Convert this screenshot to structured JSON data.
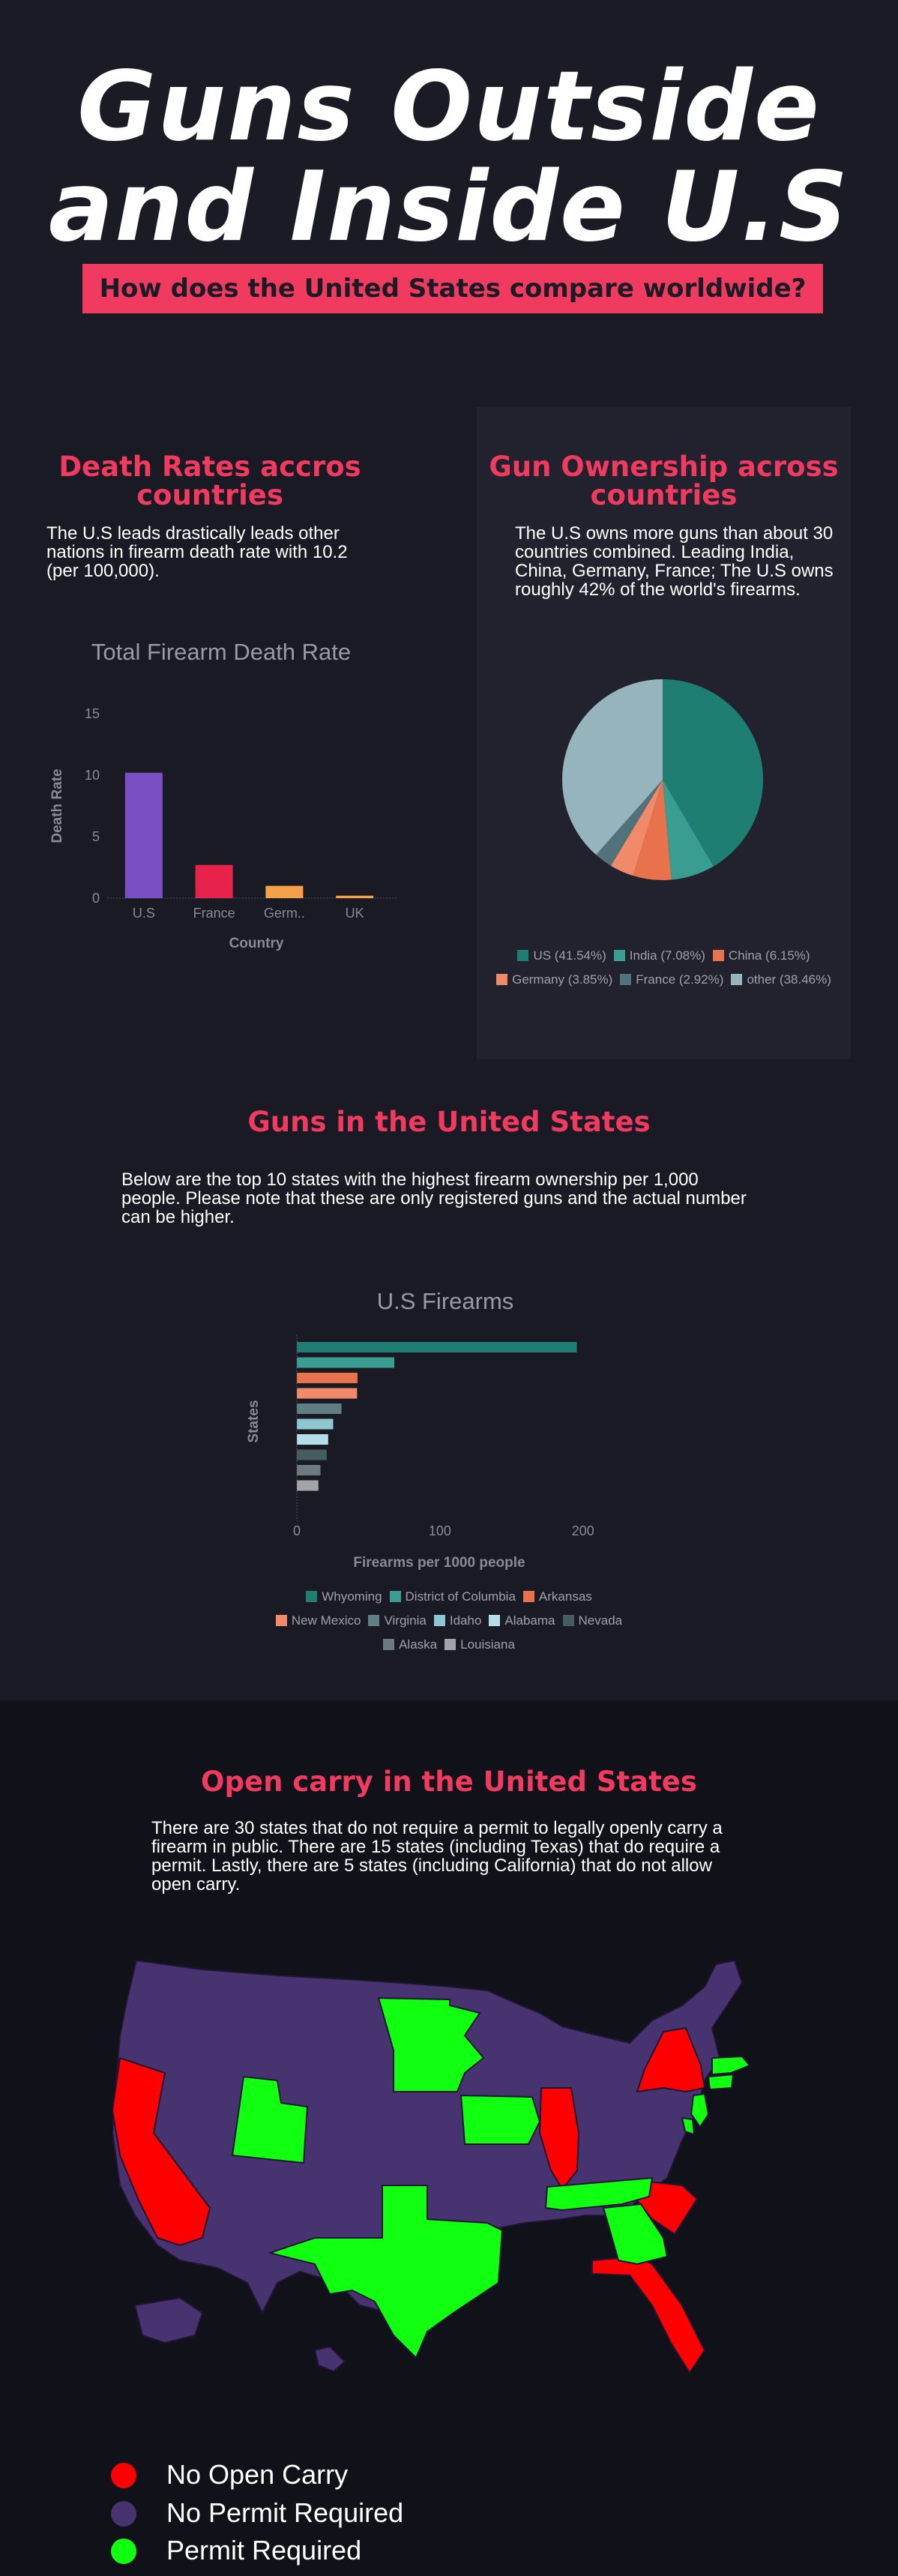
{
  "header": {
    "title_line1": "Guns Outside",
    "title_line2": "and Inside U.S",
    "subtitle": "How does the United States compare worldwide?"
  },
  "death_section": {
    "title_line1": "Death Rates accros",
    "title_line2": "countries",
    "text": "The U.S leads drastically leads other nations in firearm death rate with 10.2 (per 100,000).",
    "chart_title": "Total Firearm Death Rate"
  },
  "ownership_section": {
    "title_line1": "Gun Ownership across",
    "title_line2": "countries",
    "text": "The U.S owns more guns than about 30 countries combined. Leading India, China, Germany, France; The U.S owns roughly 42% of the world's firearms."
  },
  "states_section": {
    "title": "Guns in the United States",
    "text": "Below are the top 10 states with the highest firearm ownership per 1,000 people. Please note that these are only registered guns and the actual number can be higher.",
    "chart_title": "U.S Firearms"
  },
  "open_carry_section": {
    "title": "Open carry in the United States",
    "text": "There are 30 states that do not require a permit to legally openly carry a firearm in public. There are 15 states (including Texas) that do require a permit. Lastly, there are 5 states (including California) that do not allow open carry.",
    "legend": [
      {
        "label": "No Open Carry",
        "color": "#ff0000"
      },
      {
        "label": "No Permit Required",
        "color": "#463370"
      },
      {
        "label": "Permit Required",
        "color": "#11ff11"
      }
    ]
  },
  "colors": {
    "accent": "#f03a5f",
    "background": "#1a1a24",
    "panel": "#22222e",
    "map_background": "#111119"
  },
  "chart_data": [
    {
      "type": "bar",
      "title": "Total Firearm Death Rate",
      "xlabel": "Country",
      "ylabel": "Death Rate",
      "categories": [
        "U.S",
        "France",
        "Germ..",
        "UK"
      ],
      "values": [
        10.2,
        2.7,
        1.0,
        0.2
      ],
      "colors": [
        "#7b4fc4",
        "#e8234b",
        "#f4a24a",
        "#f4a24a"
      ],
      "ylim": [
        0,
        15
      ],
      "yticks": [
        0,
        5,
        10,
        15
      ]
    },
    {
      "type": "pie",
      "labels": [
        "US",
        "India",
        "China",
        "Germany",
        "France",
        "other"
      ],
      "values": [
        41.54,
        7.08,
        6.15,
        3.85,
        2.92,
        38.46
      ],
      "legend_text": [
        "US (41.54%)",
        "India (7.08%)",
        "China (6.15%)",
        "Germany (3.85%)",
        "France (2.92%)",
        "other (38.46%)"
      ],
      "colors": [
        "#1f7e72",
        "#3a9d91",
        "#e8724c",
        "#f08a68",
        "#51727a",
        "#96b4bb"
      ]
    },
    {
      "type": "bar",
      "orientation": "horizontal",
      "title": "U.S Firearms",
      "xlabel": "Firearms per 1000 people",
      "ylabel": "States",
      "categories": [
        "Whyoming",
        "District of Columbia",
        "Arkansas",
        "New Mexico",
        "Virginia",
        "Idaho",
        "Alabama",
        "Nevada",
        "Alaska",
        "Louisiana"
      ],
      "values": [
        195.7,
        68.1,
        42.4,
        42.1,
        31.2,
        25.4,
        21.9,
        20.9,
        16.5,
        15.1
      ],
      "colors": [
        "#1f7e72",
        "#3a9d91",
        "#e8724c",
        "#f08a68",
        "#5f7f85",
        "#8fc7d1",
        "#b7dde6",
        "#455c60",
        "#6b7b7e",
        "#a0a5a7"
      ],
      "xlim": [
        0,
        230
      ],
      "xticks": [
        0,
        100,
        200
      ]
    }
  ]
}
